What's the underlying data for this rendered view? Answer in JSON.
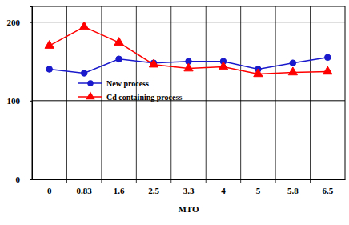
{
  "chart_data": {
    "type": "line",
    "x_label": "MTO",
    "categories": [
      "0",
      "0.83",
      "1.6",
      "2.5",
      "3.3",
      "4",
      "5",
      "5.8",
      "6.5"
    ],
    "series": [
      {
        "name": "New process",
        "color": "#1a1acc",
        "marker": "circle",
        "values": [
          140,
          135,
          153,
          148,
          150,
          150,
          140,
          148,
          155
        ]
      },
      {
        "name": "Cd containing process",
        "color": "#ff0000",
        "marker": "triangle",
        "values": [
          170,
          194,
          174,
          146,
          141,
          143,
          134,
          136,
          137
        ]
      }
    ],
    "ylim": [
      0,
      220
    ],
    "yticks": [
      0,
      100,
      200
    ],
    "grid": true,
    "legend": "left"
  }
}
